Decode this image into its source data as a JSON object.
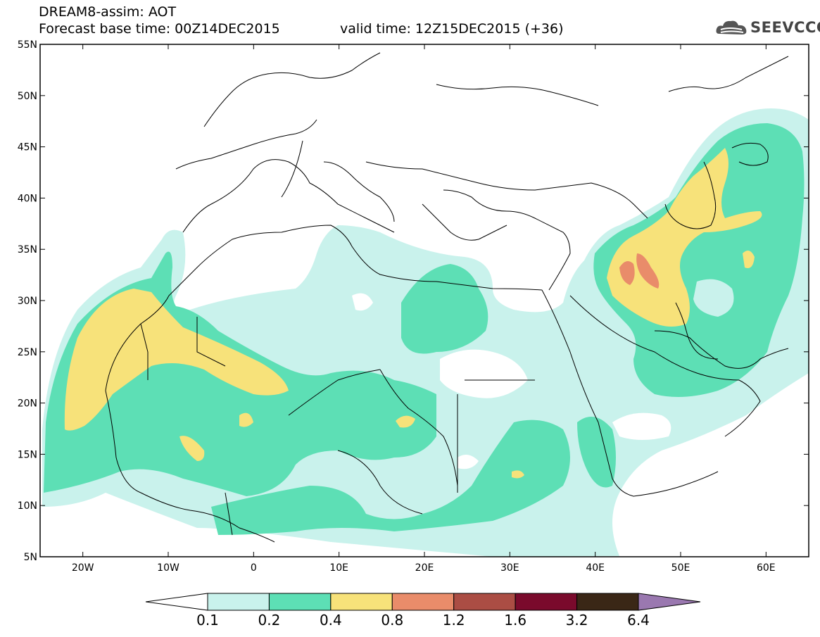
{
  "header": {
    "line1": "DREAM8-assim: AOT",
    "line2": "Forecast base time: 00Z14DEC2015",
    "valid": "valid time: 12Z15DEC2015 (+36)"
  },
  "logo": {
    "text": "SEEVCCC",
    "icon": "cloud-icon"
  },
  "map": {
    "type": "filled-contour",
    "variable": "AOT",
    "lon_range": [
      -25,
      65
    ],
    "lat_range": [
      5,
      55
    ],
    "lat_ticks": [
      "55N",
      "50N",
      "45N",
      "40N",
      "35N",
      "30N",
      "25N",
      "20N",
      "15N",
      "10N",
      "5N"
    ],
    "lon_ticks": [
      "20W",
      "10W",
      "0",
      "10E",
      "20E",
      "30E",
      "40E",
      "50E",
      "60E"
    ]
  },
  "colorbar": {
    "labels": [
      "0.1",
      "0.2",
      "0.4",
      "0.8",
      "1.2",
      "1.6",
      "3.2",
      "6.4"
    ],
    "colors": [
      "#ffffff",
      "#c9f2ec",
      "#5ddfb5",
      "#f7e27a",
      "#e98c6a",
      "#ab4d44",
      "#7a0a2c",
      "#3a2716",
      "#9a78b0"
    ]
  }
}
